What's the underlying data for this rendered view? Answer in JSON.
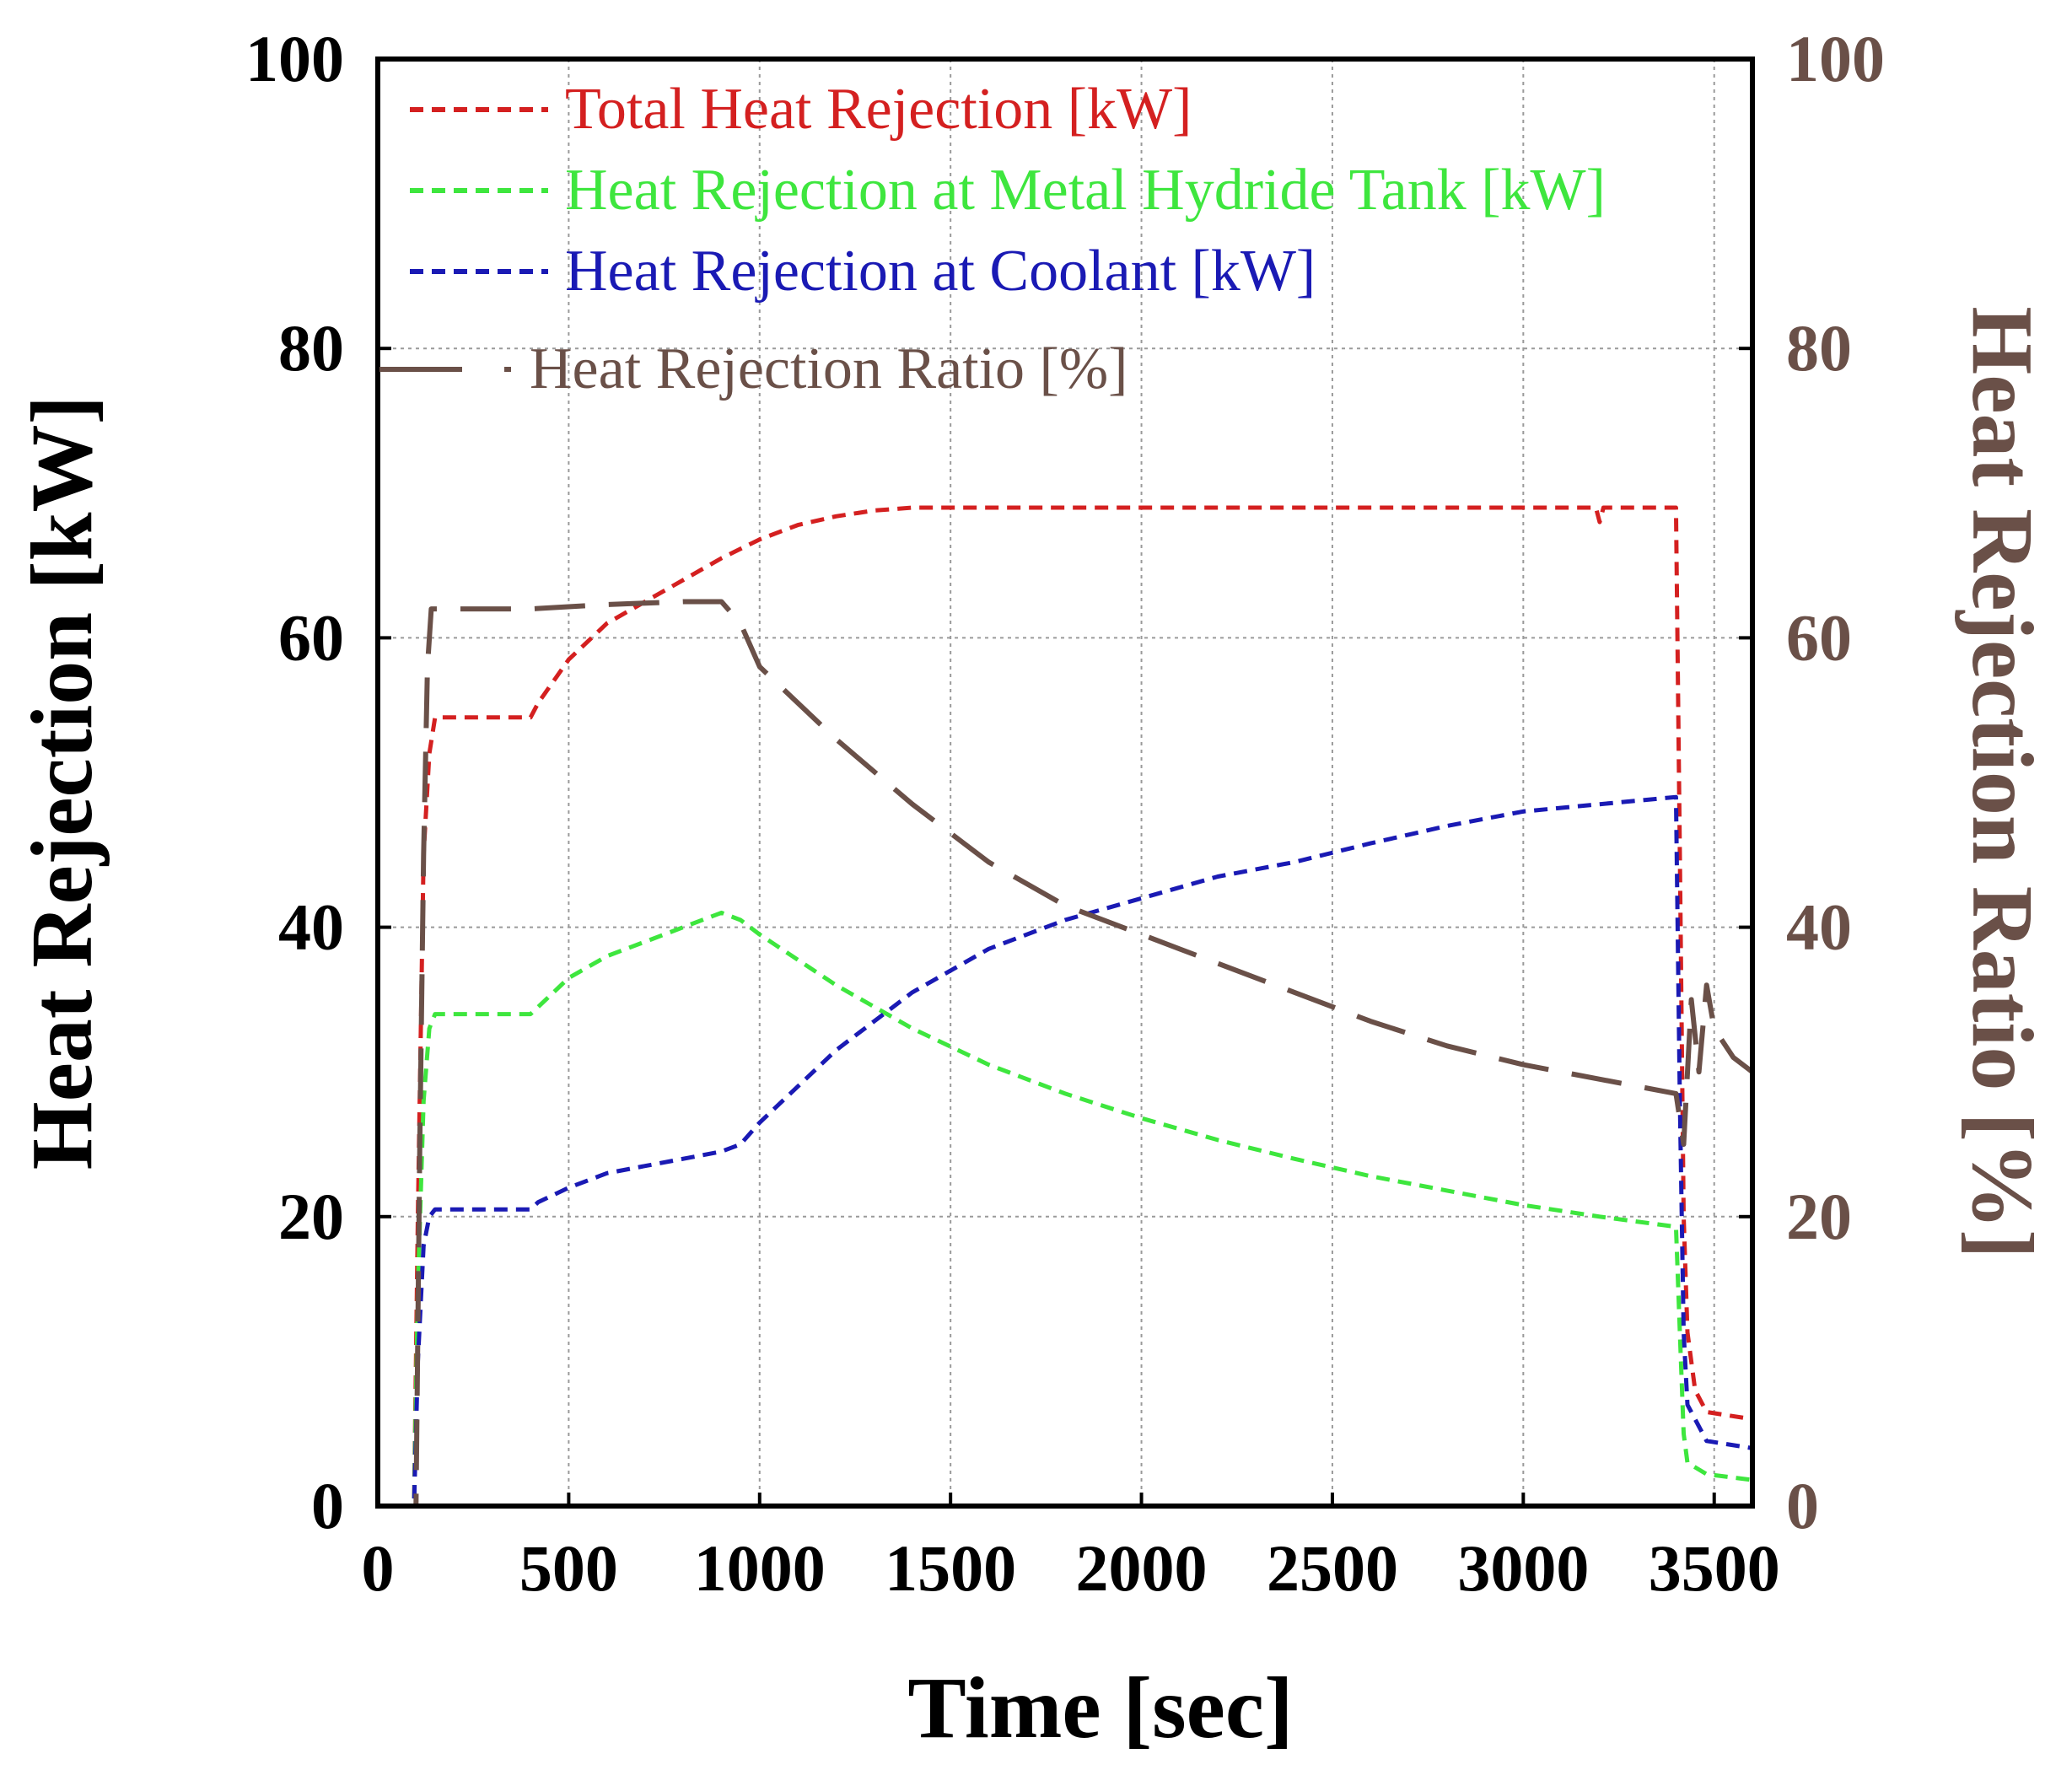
{
  "chart_data": {
    "type": "line",
    "title": "",
    "xlabel": "Time [sec]",
    "ylabel": "Heat Rejection [kW]",
    "y2label": "Heat Rejection Ratio [%]",
    "xlim": [
      0,
      3600
    ],
    "ylim": [
      0,
      100
    ],
    "y2lim": [
      0,
      100
    ],
    "xticks": [
      "0",
      "500",
      "1000",
      "1500",
      "2000",
      "2500",
      "3000",
      "3500"
    ],
    "yticks": [
      "0",
      "20",
      "40",
      "60",
      "80",
      "100"
    ],
    "y2ticks": [
      "0",
      "20",
      "40",
      "60",
      "80",
      "100"
    ],
    "grid": true,
    "legend_position": "top-left",
    "colors": {
      "total": "#d42020",
      "tank": "#3ee63e",
      "coolant": "#1a1ab4",
      "ratio": "#6a5048",
      "axis": "#000000",
      "grid": "#9a9a9a"
    },
    "series": [
      {
        "name": "Total Heat Rejection [kW]",
        "axis": "left",
        "style": "dashed",
        "x": [
          0,
          95,
          105,
          120,
          135,
          150,
          400,
          420,
          500,
          600,
          700,
          800,
          900,
          1000,
          1100,
          1200,
          1300,
          1400,
          1500,
          2000,
          2500,
          3000,
          3190,
          3200,
          3210,
          3400,
          3410,
          3420,
          3430,
          3450,
          3480,
          3600
        ],
        "y": [
          0,
          0,
          20,
          45,
          52,
          54.5,
          54.5,
          55.5,
          58.5,
          61,
          62.5,
          64,
          65.5,
          66.8,
          67.8,
          68.4,
          68.8,
          69,
          69,
          69,
          69,
          69,
          69,
          68,
          69,
          69,
          45,
          20,
          12,
          8,
          6.5,
          6
        ]
      },
      {
        "name": "Heat Rejection at Metal Hydride Tank [kW]",
        "axis": "left",
        "style": "dashed",
        "x": [
          0,
          95,
          105,
          120,
          135,
          150,
          400,
          420,
          500,
          600,
          700,
          800,
          900,
          950,
          1000,
          1200,
          1400,
          1600,
          1800,
          2000,
          2200,
          2400,
          2600,
          2800,
          3000,
          3200,
          3400,
          3410,
          3420,
          3430,
          3480,
          3600
        ],
        "y": [
          0,
          0,
          15,
          28,
          33,
          34,
          34,
          34.5,
          36.5,
          38,
          39,
          40,
          41,
          40.5,
          39.5,
          36,
          33,
          30.5,
          28.5,
          26.8,
          25.3,
          24,
          22.8,
          21.8,
          20.8,
          20,
          19.3,
          12,
          5,
          3,
          2.2,
          1.8
        ]
      },
      {
        "name": "Heat Rejection at Coolant [kW]",
        "axis": "left",
        "style": "dashed",
        "x": [
          0,
          95,
          105,
          120,
          135,
          150,
          400,
          420,
          500,
          600,
          700,
          800,
          900,
          950,
          1000,
          1200,
          1400,
          1600,
          1800,
          2000,
          2200,
          2400,
          2600,
          2800,
          3000,
          3200,
          3400,
          3410,
          3420,
          3430,
          3480,
          3600
        ],
        "y": [
          0,
          0,
          10,
          18,
          20,
          20.5,
          20.5,
          21,
          22,
          23,
          23.5,
          24,
          24.5,
          25,
          26.5,
          31.5,
          35.5,
          38.5,
          40.5,
          42,
          43.5,
          44.5,
          45.8,
          47,
          48,
          48.5,
          49,
          28,
          12,
          7,
          4.5,
          4
        ]
      },
      {
        "name": "Heat Rejection Ratio [%]",
        "axis": "right",
        "style": "long-dash",
        "x": [
          0,
          100,
          110,
          120,
          130,
          140,
          150,
          200,
          400,
          600,
          800,
          900,
          950,
          1000,
          1200,
          1400,
          1600,
          1800,
          2000,
          2200,
          2400,
          2600,
          2800,
          3000,
          3200,
          3400,
          3420,
          3440,
          3460,
          3480,
          3500,
          3550,
          3600
        ],
        "y": [
          0,
          0,
          25,
          45,
          58,
          62,
          62,
          62,
          62,
          62.3,
          62.5,
          62.5,
          61,
          58,
          53,
          48.5,
          44.5,
          41.5,
          39.5,
          37.5,
          35.5,
          33.5,
          31.8,
          30.5,
          29.5,
          28.5,
          25,
          35,
          30,
          36,
          33,
          31,
          30
        ]
      }
    ]
  }
}
